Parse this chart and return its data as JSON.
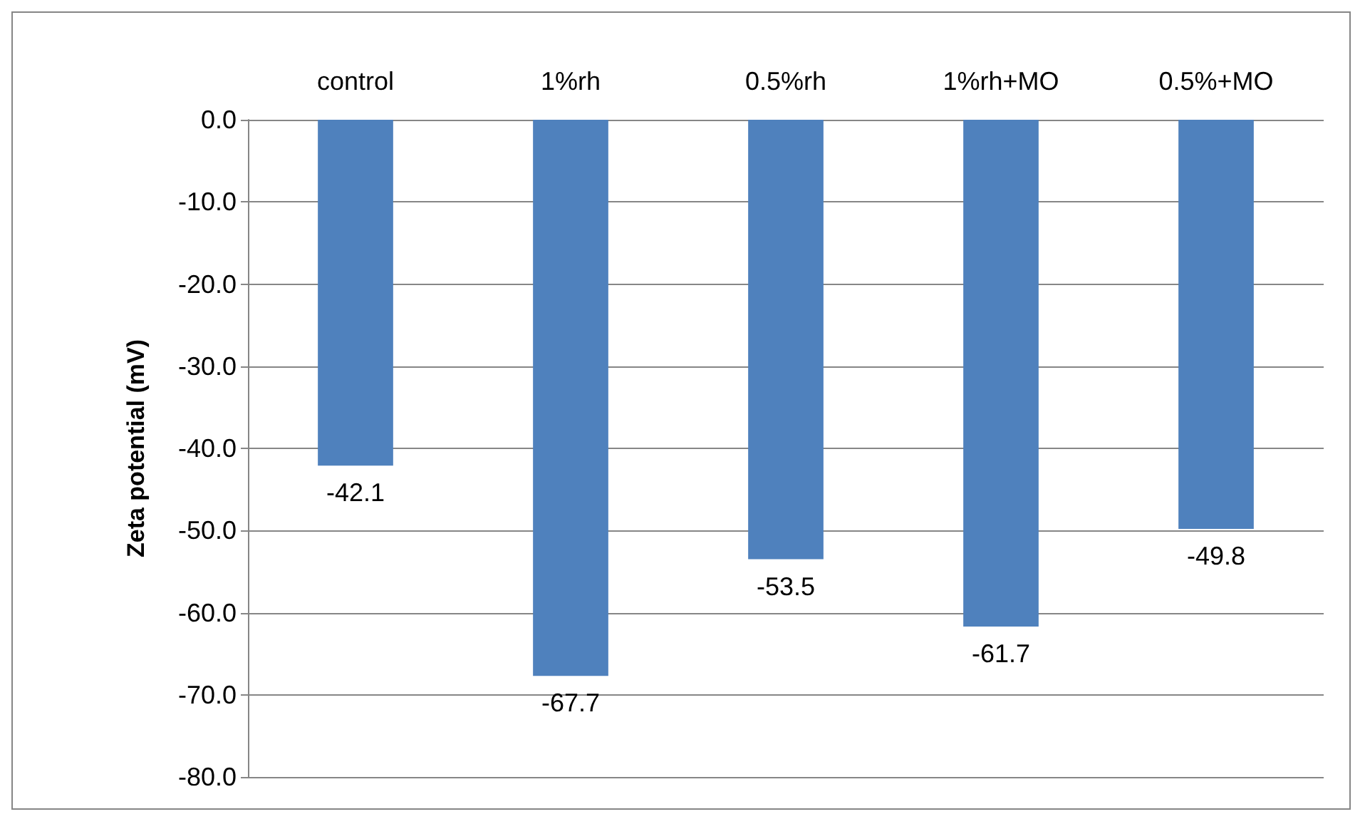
{
  "chart_data": {
    "type": "bar",
    "ylabel": "Zeta potential (mV)",
    "categories": [
      "control",
      "1%rh",
      "0.5%rh",
      "1%rh+MO",
      "0.5%+MO"
    ],
    "values": [
      -42.1,
      -67.7,
      -53.5,
      -61.7,
      -49.8
    ],
    "color": "#4f81bd",
    "ylim": [
      -80,
      0
    ],
    "yticks": [
      {
        "value": -80,
        "label": "-80.0"
      },
      {
        "value": -70,
        "label": "-70.0"
      },
      {
        "value": -60,
        "label": "-60.0"
      },
      {
        "value": -50,
        "label": "-50.0"
      },
      {
        "value": -40,
        "label": "-40.0"
      },
      {
        "value": -30,
        "label": "-30.0"
      },
      {
        "value": -20,
        "label": "-20.0"
      },
      {
        "value": -10,
        "label": "-10.0"
      },
      {
        "value": 0,
        "label": "0.0"
      }
    ],
    "grid": "y",
    "data_labels": true
  }
}
